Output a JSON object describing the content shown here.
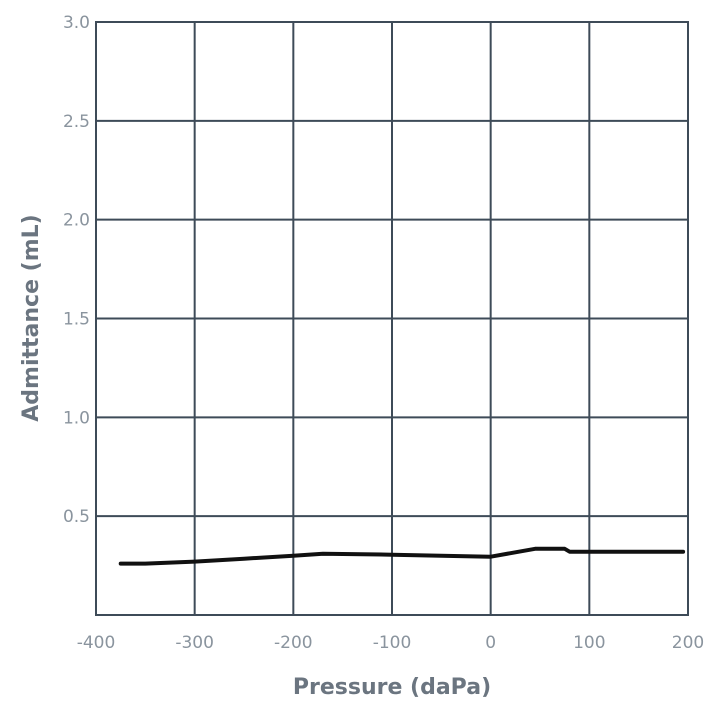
{
  "chart_data": {
    "type": "line",
    "title": "",
    "xlabel": "Pressure (daPa)",
    "ylabel": "Admittance (mL)",
    "xlim": [
      -400,
      200
    ],
    "ylim": [
      0,
      3.0
    ],
    "x_ticks": [
      -400,
      -300,
      -200,
      -100,
      0,
      100,
      200
    ],
    "x_tick_labels": [
      "-400",
      "-300",
      "-200",
      "-100",
      "0",
      "100",
      "200"
    ],
    "y_ticks": [
      0.5,
      1.0,
      1.5,
      2.0,
      2.5,
      3.0
    ],
    "y_tick_labels": [
      "0.5",
      "1.0",
      "1.5",
      "2.0",
      "2.5",
      "3.0"
    ],
    "grid": true,
    "colors": {
      "grid": "#3e4b58",
      "line": "#111111",
      "text": "#8a949e",
      "title": "#6b7580"
    },
    "series": [
      {
        "x": [
          -375,
          -350,
          -300,
          -250,
          -200,
          -170,
          -100,
          0,
          45,
          75,
          80,
          150,
          195
        ],
        "y": [
          0.26,
          0.26,
          0.27,
          0.285,
          0.3,
          0.31,
          0.305,
          0.295,
          0.335,
          0.335,
          0.32,
          0.32,
          0.32
        ]
      }
    ]
  }
}
